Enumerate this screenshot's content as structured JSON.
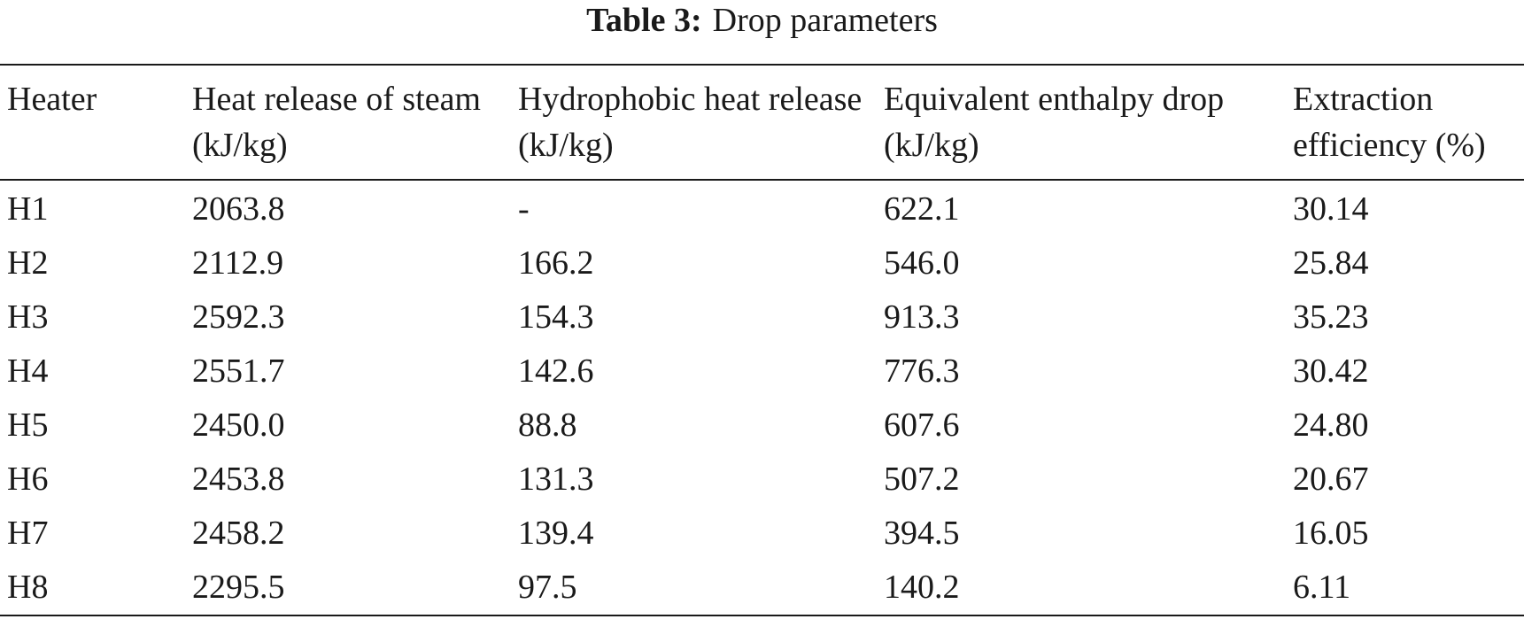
{
  "caption": {
    "label": "Table 3:",
    "title": "Drop parameters"
  },
  "table": {
    "headers": [
      "Heater",
      "Heat release of steam (kJ/kg)",
      "Hydrophobic heat release (kJ/kg)",
      "Equivalent enthalpy drop (kJ/kg)",
      "Extraction efficiency (%)"
    ],
    "rows": [
      [
        "H1",
        "2063.8",
        "-",
        "622.1",
        "30.14"
      ],
      [
        "H2",
        "2112.9",
        "166.2",
        "546.0",
        "25.84"
      ],
      [
        "H3",
        "2592.3",
        "154.3",
        "913.3",
        "35.23"
      ],
      [
        "H4",
        "2551.7",
        "142.6",
        "776.3",
        "30.42"
      ],
      [
        "H5",
        "2450.0",
        "88.8",
        "607.6",
        "24.80"
      ],
      [
        "H6",
        "2453.8",
        "131.3",
        "507.2",
        "20.67"
      ],
      [
        "H7",
        "2458.2",
        "139.4",
        "394.5",
        "16.05"
      ],
      [
        "H8",
        "2295.5",
        "97.5",
        "140.2",
        "6.11"
      ]
    ]
  }
}
